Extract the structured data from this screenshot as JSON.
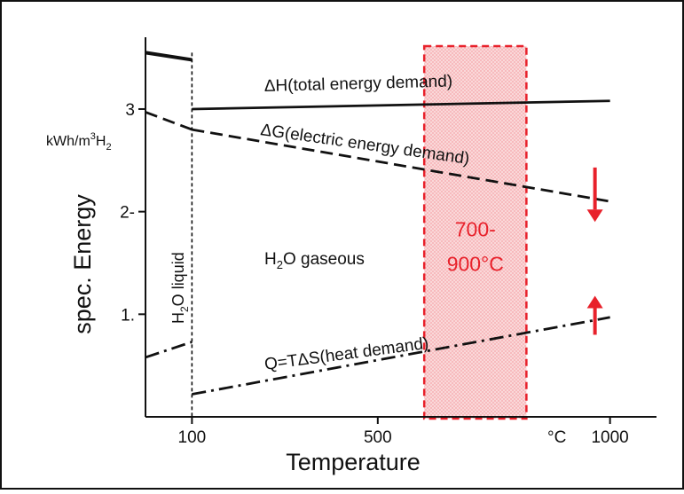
{
  "chart_data": {
    "type": "line",
    "xlabel": "Temperature",
    "ylabel": "spec. Energy",
    "yunit": [
      "kWh/m",
      "3",
      "H",
      "2"
    ],
    "x_unit_tick": "°C",
    "xlim": [
      0,
      1100
    ],
    "ylim": [
      0,
      3.7
    ],
    "x_ticks": [
      {
        "value": 100,
        "label": "100"
      },
      {
        "value": 500,
        "label": "500"
      },
      {
        "value": 1000,
        "label": "1000"
      }
    ],
    "y_ticks": [
      {
        "value": 1,
        "label": "1."
      },
      {
        "value": 2,
        "label": "2-"
      },
      {
        "value": 3,
        "label": "3"
      }
    ],
    "boundary_x": 100,
    "series": [
      {
        "name": "ΔH(total energy demand)",
        "style": "solid",
        "x": [
          100,
          1000
        ],
        "y": [
          3.0,
          3.08
        ]
      },
      {
        "name": "ΔG(electric energy demand)",
        "style": "dashed",
        "x": [
          100,
          1000
        ],
        "y": [
          2.8,
          2.1
        ]
      },
      {
        "name": "Q=TΔS(heat demand)",
        "style": "dashdot",
        "x": [
          100,
          1000
        ],
        "y": [
          0.22,
          0.97
        ]
      }
    ],
    "liquid_segments": [
      {
        "style": "solid",
        "x": [
          0,
          100
        ],
        "y": [
          3.55,
          3.48
        ]
      },
      {
        "style": "dashed",
        "x": [
          0,
          100
        ],
        "y": [
          2.97,
          2.8
        ]
      },
      {
        "style": "dashdot",
        "x": [
          0,
          100
        ],
        "y": [
          0.58,
          0.73
        ]
      }
    ],
    "region_labels": {
      "liquid": [
        "H",
        "2",
        "O liquid"
      ],
      "gaseous": [
        "H",
        "2",
        "O gaseous"
      ]
    },
    "highlight": {
      "x_range": [
        600,
        820
      ],
      "label_line1": "700-",
      "label_line2": "900°C",
      "color": "#e8212b"
    },
    "arrows": [
      {
        "direction": "down",
        "x": 1000,
        "y_from": 2.43,
        "y_to": 1.9
      },
      {
        "direction": "up",
        "x": 1000,
        "y_from": 0.8,
        "y_to": 1.18
      }
    ]
  },
  "colors": {
    "ink": "#111111",
    "accent": "#e8212b",
    "background": "#ffffff"
  }
}
